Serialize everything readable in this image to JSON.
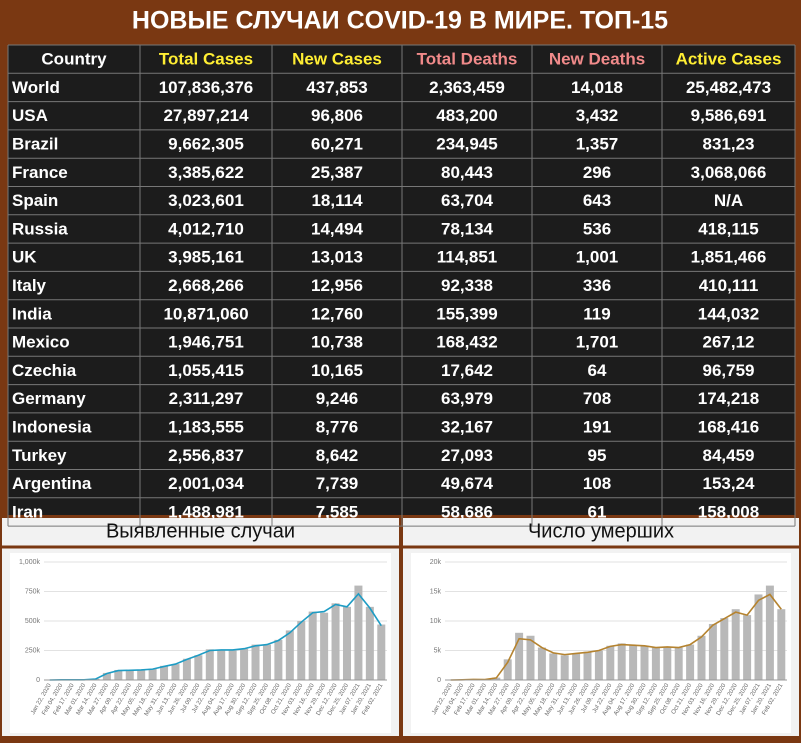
{
  "header": {
    "title": "НОВЫЕ СЛУЧАИ COVID-19 В МИРЕ. ТОП-15"
  },
  "table": {
    "headers": [
      "Country",
      "Total Cases",
      "New Cases",
      "Total Deaths",
      "New Deaths",
      "Active Cases"
    ],
    "header_colors": [
      "#ffffff",
      "#ffee33",
      "#ffee33",
      "#f08a8a",
      "#f08a8a",
      "#ffee33"
    ],
    "rows": [
      [
        "World",
        "107,836,376",
        "437,853",
        "2,363,459",
        "14,018",
        "25,482,473"
      ],
      [
        "USA",
        "27,897,214",
        "96,806",
        "483,200",
        "3,432",
        "9,586,691"
      ],
      [
        "Brazil",
        "9,662,305",
        "60,271",
        "234,945",
        "1,357",
        "831,23"
      ],
      [
        "France",
        "3,385,622",
        "25,387",
        "80,443",
        "296",
        "3,068,066"
      ],
      [
        "Spain",
        "3,023,601",
        "18,114",
        "63,704",
        "643",
        "N/A"
      ],
      [
        "Russia",
        "4,012,710",
        "14,494",
        "78,134",
        "536",
        "418,115"
      ],
      [
        "UK",
        "3,985,161",
        "13,013",
        "114,851",
        "1,001",
        "1,851,466"
      ],
      [
        "Italy",
        "2,668,266",
        "12,956",
        "92,338",
        "336",
        "410,111"
      ],
      [
        "India",
        "10,871,060",
        "12,760",
        "155,399",
        "119",
        "144,032"
      ],
      [
        "Mexico",
        "1,946,751",
        "10,738",
        "168,432",
        "1,701",
        "267,12"
      ],
      [
        "Czechia",
        "1,055,415",
        "10,165",
        "17,642",
        "64",
        "96,759"
      ],
      [
        "Germany",
        "2,311,297",
        "9,246",
        "63,979",
        "708",
        "174,218"
      ],
      [
        "Indonesia",
        "1,183,555",
        "8,776",
        "32,167",
        "191",
        "168,416"
      ],
      [
        "Turkey",
        "2,556,837",
        "8,642",
        "27,093",
        "95",
        "84,459"
      ],
      [
        "Argentina",
        "2,001,034",
        "7,739",
        "49,674",
        "108",
        "153,24"
      ],
      [
        "Iran",
        "1,488,981",
        "7,585",
        "58,686",
        "61",
        "158,008"
      ]
    ]
  },
  "chart_data": [
    {
      "type": "bar-line",
      "title": "Выявленные случаи",
      "categories": [
        "Jan 22, 2020",
        "Feb 04, 2020",
        "Feb 17, 2020",
        "Mar 01, 2020",
        "Mar 14, 2020",
        "Mar 27, 2020",
        "Apr 09, 2020",
        "Apr 22, 2020",
        "May 05, 2020",
        "May 18, 2020",
        "May 31, 2020",
        "Jun 13, 2020",
        "Jun 26, 2020",
        "Jul 09, 2020",
        "Jul 22, 2020",
        "Aug 04, 2020",
        "Aug 17, 2020",
        "Aug 30, 2020",
        "Sep 12, 2020",
        "Sep 25, 2020",
        "Oct 08, 2020",
        "Oct 21, 2020",
        "Nov 03, 2020",
        "Nov 16, 2020",
        "Nov 29, 2020",
        "Dec 12, 2020",
        "Dec 25, 2020",
        "Jan 07, 2021",
        "Jan 20, 2021",
        "Feb 02, 2021"
      ],
      "series": [
        {
          "color": "#b8b8b8",
          "values": [
            0,
            3000,
            2000,
            2000,
            10000,
            60000,
            85000,
            80000,
            85000,
            95000,
            120000,
            135000,
            180000,
            210000,
            260000,
            255000,
            250000,
            265000,
            300000,
            300000,
            340000,
            420000,
            500000,
            580000,
            570000,
            650000,
            620000,
            800000,
            620000,
            470000
          ]
        },
        {
          "color": "#1e9cc4",
          "values": [
            0,
            2000,
            2000,
            2000,
            8000,
            55000,
            80000,
            82000,
            85000,
            92000,
            115000,
            135000,
            175000,
            210000,
            250000,
            255000,
            255000,
            265000,
            290000,
            300000,
            335000,
            400000,
            490000,
            570000,
            580000,
            640000,
            620000,
            730000,
            610000,
            460000
          ]
        }
      ],
      "ylim": [
        0,
        1000000
      ],
      "yticks": [
        0,
        {
          "value": 250000,
          "label": "250k"
        },
        {
          "value": 500000,
          "label": "500k"
        },
        {
          "value": 750000,
          "label": "750k"
        },
        {
          "value": 1000000,
          "label": "1,000k"
        }
      ]
    },
    {
      "type": "bar-line",
      "title": "Число умерших",
      "categories": [
        "Jan 22, 2020",
        "Feb 04, 2020",
        "Feb 17, 2020",
        "Mar 01, 2020",
        "Mar 14, 2020",
        "Mar 27, 2020",
        "Apr 09, 2020",
        "Apr 22, 2020",
        "May 05, 2020",
        "May 18, 2020",
        "May 31, 2020",
        "Jun 13, 2020",
        "Jun 26, 2020",
        "Jul 09, 2020",
        "Jul 22, 2020",
        "Aug 04, 2020",
        "Aug 17, 2020",
        "Aug 30, 2020",
        "Sep 12, 2020",
        "Sep 25, 2020",
        "Oct 08, 2020",
        "Oct 21, 2020",
        "Nov 03, 2020",
        "Nov 16, 2020",
        "Nov 29, 2020",
        "Dec 12, 2020",
        "Dec 25, 2020",
        "Jan 07, 2021",
        "Jan 20, 2021",
        "Feb 02, 2021"
      ],
      "series": [
        {
          "color": "#b8b8b8",
          "values": [
            0,
            50,
            100,
            80,
            400,
            3500,
            8000,
            7500,
            5500,
            4500,
            4200,
            4500,
            4800,
            5000,
            5800,
            6200,
            5900,
            5800,
            5500,
            5600,
            5500,
            6000,
            7500,
            9500,
            10500,
            12000,
            11000,
            14500,
            16000,
            12000
          ]
        },
        {
          "color": "#b5832f",
          "values": [
            0,
            40,
            90,
            80,
            350,
            3000,
            7000,
            6800,
            5500,
            4600,
            4300,
            4500,
            4700,
            5000,
            5700,
            6000,
            5900,
            5800,
            5500,
            5600,
            5500,
            6000,
            7300,
            9300,
            10400,
            11500,
            11000,
            13500,
            14500,
            12000
          ]
        }
      ],
      "ylim": [
        0,
        20000
      ],
      "yticks": [
        0,
        {
          "value": 5000,
          "label": "5k"
        },
        {
          "value": 10000,
          "label": "10k"
        },
        {
          "value": 15000,
          "label": "15k"
        },
        {
          "value": 20000,
          "label": "20k"
        }
      ]
    }
  ]
}
